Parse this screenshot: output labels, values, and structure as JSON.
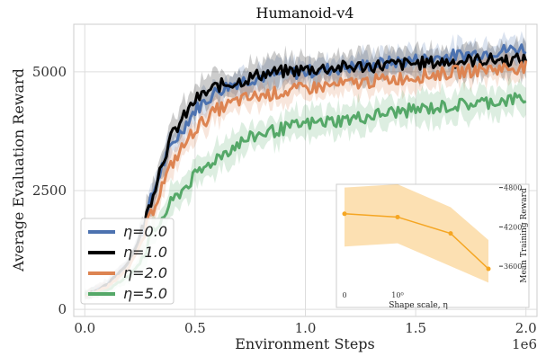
{
  "chart_data": [
    {
      "type": "line",
      "title": "Humanoid-v4",
      "xlabel": "Environment Steps",
      "ylabel": "Average Evaluation Reward",
      "x_offset_label": "1e6",
      "xlim": [
        -0.05,
        2.05
      ],
      "ylim": [
        -150,
        6000
      ],
      "xticks": [
        0.0,
        0.5,
        1.0,
        1.5,
        2.0
      ],
      "xtick_labels": [
        "0.0",
        "0.5",
        "1.0",
        "1.5",
        "2.0"
      ],
      "yticks": [
        0,
        2500,
        5000
      ],
      "ytick_labels": [
        "0",
        "2500",
        "5000"
      ],
      "grid": true,
      "legend_position": "lower-left",
      "x": [
        0.0,
        0.1,
        0.2,
        0.25,
        0.3,
        0.35,
        0.4,
        0.5,
        0.6,
        0.7,
        0.8,
        1.0,
        1.2,
        1.4,
        1.6,
        1.8,
        2.0
      ],
      "series": [
        {
          "name": "η=0.0",
          "color": "#4c72b0",
          "values": [
            300,
            500,
            1000,
            1500,
            2300,
            3000,
            3500,
            4200,
            4600,
            4800,
            4900,
            5000,
            5100,
            5200,
            5300,
            5400,
            5500
          ],
          "band": 250
        },
        {
          "name": "η=1.0",
          "color": "#000000",
          "values": [
            300,
            500,
            1000,
            1500,
            2300,
            3100,
            3700,
            4400,
            4700,
            4800,
            4950,
            5050,
            5100,
            5150,
            5200,
            5250,
            5250
          ],
          "band": 300
        },
        {
          "name": "η=2.0",
          "color": "#dd8452",
          "values": [
            300,
            450,
            900,
            1300,
            2000,
            2600,
            3100,
            3800,
            4200,
            4400,
            4500,
            4650,
            4750,
            4850,
            4950,
            5050,
            5100
          ],
          "band": 250
        },
        {
          "name": "η=5.0",
          "color": "#55a868",
          "values": [
            300,
            400,
            700,
            1000,
            1500,
            1900,
            2300,
            2800,
            3200,
            3500,
            3700,
            3900,
            4000,
            4150,
            4250,
            4350,
            4450
          ],
          "band": 300
        }
      ]
    },
    {
      "type": "line",
      "title": "",
      "xlabel": "Shape scale, η",
      "ylabel": "Mean Training Reward",
      "x_scale": "log",
      "x": [
        0,
        1,
        2,
        5
      ],
      "xtick_labels": [
        "0",
        "10⁰"
      ],
      "yticks": [
        3600,
        4200,
        4800
      ],
      "ytick_labels": [
        "3600",
        "4200",
        "4800"
      ],
      "ylim": [
        3300,
        4850
      ],
      "color": "#f5a623",
      "values": [
        4400,
        4350,
        4100,
        3560
      ],
      "band_lower": [
        3900,
        3950,
        3600,
        3350
      ],
      "band_upper": [
        4800,
        4850,
        4500,
        4000
      ]
    }
  ]
}
